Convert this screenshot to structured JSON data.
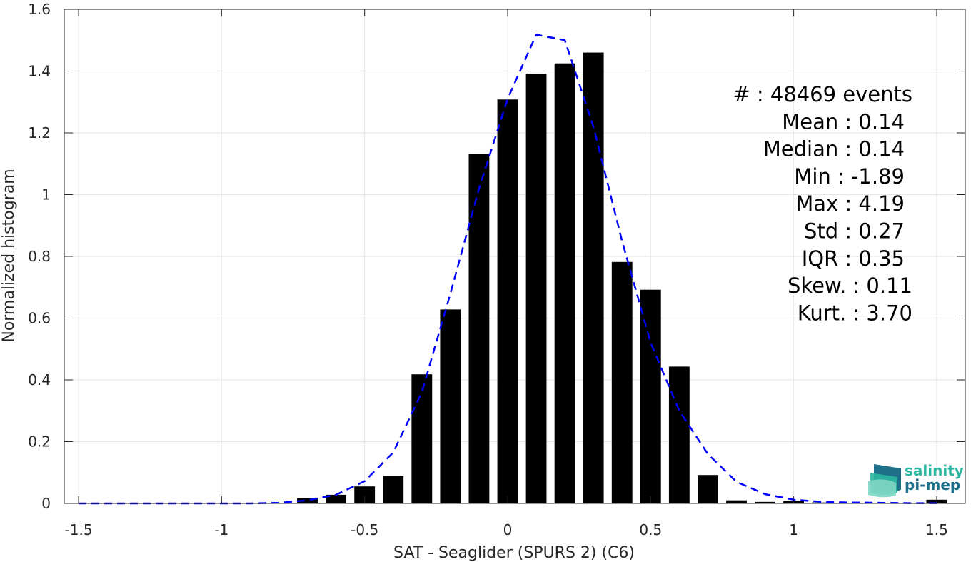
{
  "chart_data": {
    "type": "bar",
    "xlabel": "SAT - Seaglider (SPURS 2) (C6)",
    "ylabel": "Normalized histogram",
    "xlim": [
      -1.55,
      1.6
    ],
    "ylim": [
      0,
      1.6
    ],
    "x_ticks": [
      -1.5,
      -1,
      -0.5,
      0,
      0.5,
      1,
      1.5
    ],
    "x_tick_labels": [
      "-1.5",
      "-1",
      "-0.5",
      "0",
      "0.5",
      "1",
      "1.5"
    ],
    "y_ticks": [
      0,
      0.2,
      0.4,
      0.6,
      0.8,
      1,
      1.2,
      1.4,
      1.6
    ],
    "y_tick_labels": [
      "0",
      "0.2",
      "0.4",
      "0.6",
      "0.8",
      "1",
      "1.2",
      "1.4",
      "1.6"
    ],
    "grid": true,
    "bar_color": "#000000",
    "bin_centers": [
      -1.5,
      -1.4,
      -1.3,
      -1.2,
      -1.1,
      -1.0,
      -0.9,
      -0.8,
      -0.7,
      -0.6,
      -0.5,
      -0.4,
      -0.3,
      -0.2,
      -0.1,
      0.0,
      0.1,
      0.2,
      0.3,
      0.4,
      0.5,
      0.6,
      0.7,
      0.8,
      0.9,
      1.0,
      1.1,
      1.2,
      1.3,
      1.4,
      1.5
    ],
    "values": [
      0.0,
      0.0,
      0.0,
      0.0,
      0.0,
      0.0,
      0.0,
      0.002,
      0.018,
      0.028,
      0.055,
      0.088,
      0.418,
      0.628,
      1.132,
      1.308,
      1.392,
      1.425,
      1.46,
      0.782,
      0.692,
      0.443,
      0.092,
      0.01,
      0.005,
      0.008,
      0.003,
      0.002,
      0.002,
      0.002,
      0.012
    ],
    "fit_curve": {
      "color": "#0000ff",
      "style": "dashed",
      "x": [
        -1.5,
        -1.4,
        -1.3,
        -1.2,
        -1.1,
        -1.0,
        -0.9,
        -0.8,
        -0.7,
        -0.6,
        -0.5,
        -0.4,
        -0.3,
        -0.2,
        -0.1,
        0.0,
        0.1,
        0.2,
        0.3,
        0.4,
        0.5,
        0.6,
        0.7,
        0.8,
        0.9,
        1.0,
        1.1,
        1.2,
        1.3,
        1.4,
        1.5
      ],
      "y": [
        0.0,
        0.0,
        0.0,
        0.0,
        0.0,
        0.0,
        0.0,
        0.002,
        0.01,
        0.028,
        0.072,
        0.165,
        0.36,
        0.68,
        1.02,
        1.31,
        1.518,
        1.5,
        1.22,
        0.85,
        0.52,
        0.3,
        0.16,
        0.07,
        0.03,
        0.012,
        0.005,
        0.003,
        0.002,
        0.001,
        0.001
      ]
    },
    "stats": [
      "#  : 48469 events",
      "Mean : 0.14",
      "Median : 0.14",
      "Min : -1.89",
      "Max : 4.19",
      "Std : 0.27",
      "IQR : 0.35",
      "Skew. : 0.11",
      "Kurt. : 3.70"
    ]
  },
  "logo": {
    "line1": "salinity",
    "line2": "pi-mep",
    "color_line1": "#2bb6a0",
    "color_line2": "#1d6f8a"
  }
}
